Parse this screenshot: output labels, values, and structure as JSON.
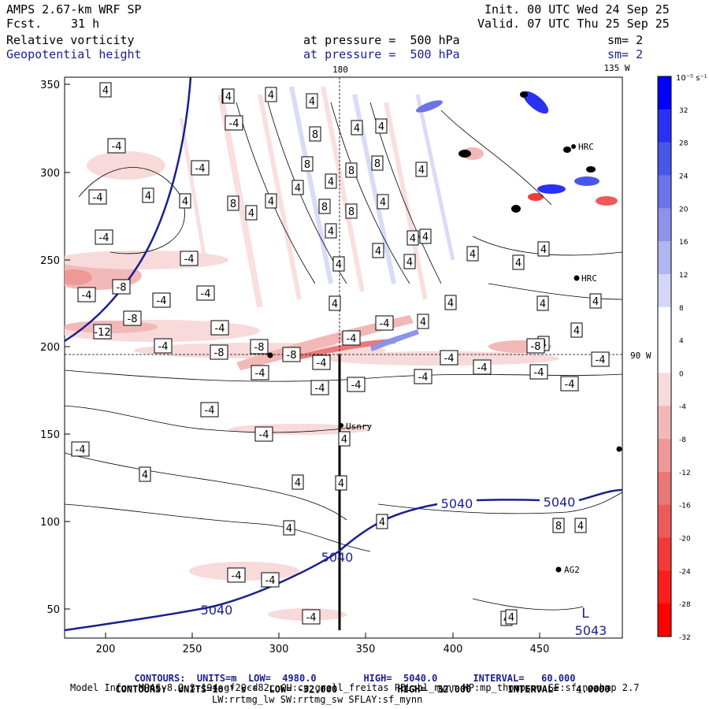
{
  "header": {
    "model": "AMPS 2.67-km WRF SP",
    "fcst_label": "Fcst.",
    "fcst_value": "31 h",
    "init": "Init. 00 UTC Wed 24 Sep 25",
    "valid": "Valid. 07 UTC Thu 25 Sep 25",
    "field1": "Relative vorticity",
    "field2": "Geopotential height",
    "pressure1": "at pressure =  500 hPa",
    "pressure2": "at pressure =  500 hPa",
    "sm1": "sm= 2",
    "sm2": "sm= 2"
  },
  "map": {
    "top_lon_180": "180",
    "top_lon_135w": "135 W",
    "right_lon_90w": "90 W",
    "y_ticks": [
      "350",
      "300",
      "250",
      "200",
      "150",
      "100",
      "50"
    ],
    "x_ticks": [
      "200",
      "250",
      "300",
      "350",
      "400",
      "450"
    ],
    "stations": [
      "HRC",
      "HRC",
      "Usnry",
      "AG2"
    ],
    "low_label": "L",
    "low_value": "5043",
    "height_labels": [
      "5040",
      "5040",
      "5040",
      "5040"
    ],
    "vort_labels_pos": [
      "4",
      "4",
      "4",
      "4",
      "4",
      "8",
      "8",
      "8",
      "4",
      "4",
      "4",
      "8",
      "4",
      "4",
      "8",
      "8",
      "4",
      "4",
      "4",
      "8",
      "4",
      "4",
      "4",
      "4",
      "4",
      "4",
      "4",
      "4",
      "4",
      "4",
      "4",
      "4",
      "4",
      "4",
      "4",
      "4",
      "4",
      "4",
      "4",
      "4",
      "4",
      "4",
      "4",
      "4",
      "8",
      "4",
      "4",
      "4"
    ],
    "vort_labels_neg": [
      "-4",
      "-4",
      "-4",
      "-4",
      "-4",
      "-4",
      "-4",
      "-8",
      "-4",
      "-12",
      "-8",
      "-4",
      "-4",
      "-4",
      "-8",
      "-8",
      "-8",
      "-4",
      "-4",
      "-4",
      "-4",
      "-4",
      "-4",
      "-8",
      "-4",
      "-4",
      "-4",
      "-4",
      "-4",
      "-4",
      "-4",
      "-4",
      "-4",
      "-4",
      "-4",
      "-4"
    ]
  },
  "colorbar": {
    "units": "10⁻⁵ s⁻¹",
    "labels": [
      "32",
      "28",
      "24",
      "20",
      "16",
      "12",
      "8",
      "4",
      "0",
      "-4",
      "-8",
      "-12",
      "-16",
      "-20",
      "-24",
      "-28",
      "-32"
    ],
    "colors": [
      "#0000ff",
      "#2a32f2",
      "#4a56ea",
      "#6a74e6",
      "#8c94ea",
      "#b0b6ef",
      "#d3d6f6",
      "#ffffff",
      "#ffffff",
      "#f8dada",
      "#f2b8b8",
      "#ee9898",
      "#ea7878",
      "#ec5a5a",
      "#f23a3a",
      "#f81e1e",
      "#ff0000"
    ]
  },
  "footer": {
    "contours1_a": "CONTOURS:  UNITS=m  LOW=  4980.0",
    "contours1_b": "HIGH=  5040.0",
    "contours1_c": "INTERVAL=   60.000",
    "contours2_a": "CONTOURS:  UNITS=10⁻⁵ s⁻¹  LOW= -32.000",
    "contours2_b": "HIGH=  32.000",
    "contours2_c": "INTERVAL=   4.0000",
    "model_info": "Model Info: MPASv8.2.3-194-gf29cd82c CU:cu_grell_freitas PBL:bl_mynn MP:mp_thompson SF:sf_noahmp 2.7",
    "model_info2": "LW:rrtmg_lw SW:rrtmg_sw SFLAY:sf_mynn"
  }
}
